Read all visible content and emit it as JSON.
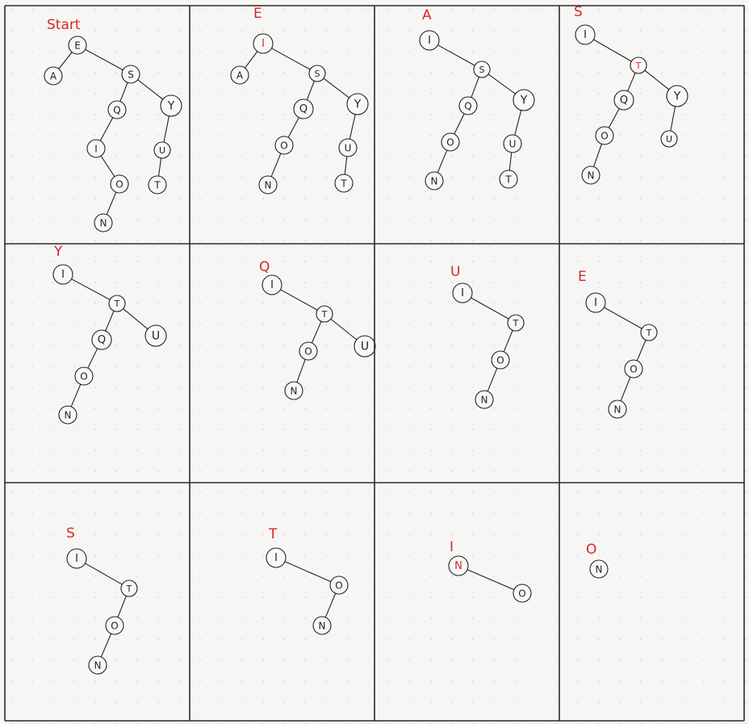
{
  "panels": [
    {
      "title": "Start",
      "nodes": [
        {
          "id": "E",
          "label": "E"
        },
        {
          "id": "A",
          "label": "A"
        },
        {
          "id": "S",
          "label": "S"
        },
        {
          "id": "Q",
          "label": "Q"
        },
        {
          "id": "Y",
          "label": "Y"
        },
        {
          "id": "I",
          "label": "I"
        },
        {
          "id": "U",
          "label": "U"
        },
        {
          "id": "O",
          "label": "O"
        },
        {
          "id": "T",
          "label": "T"
        },
        {
          "id": "N",
          "label": "N"
        }
      ],
      "edges": [
        [
          "E",
          "A"
        ],
        [
          "E",
          "S"
        ],
        [
          "S",
          "Q"
        ],
        [
          "S",
          "Y"
        ],
        [
          "Q",
          "I"
        ],
        [
          "I",
          "O"
        ],
        [
          "O",
          "N"
        ],
        [
          "Y",
          "U"
        ],
        [
          "U",
          "T"
        ]
      ]
    },
    {
      "title": "E",
      "nodes": [
        {
          "id": "I",
          "label": "I",
          "highlight": true
        },
        {
          "id": "A",
          "label": "A"
        },
        {
          "id": "S",
          "label": "S"
        },
        {
          "id": "Q",
          "label": "Q"
        },
        {
          "id": "Y",
          "label": "Y"
        },
        {
          "id": "O",
          "label": "O"
        },
        {
          "id": "U",
          "label": "U"
        },
        {
          "id": "N",
          "label": "N"
        },
        {
          "id": "T",
          "label": "T"
        }
      ],
      "edges": [
        [
          "I",
          "A"
        ],
        [
          "I",
          "S"
        ],
        [
          "S",
          "Q"
        ],
        [
          "S",
          "Y"
        ],
        [
          "Q",
          "O"
        ],
        [
          "O",
          "N"
        ],
        [
          "Y",
          "U"
        ],
        [
          "U",
          "T"
        ]
      ]
    },
    {
      "title": "A",
      "nodes": [
        {
          "id": "I",
          "label": "I"
        },
        {
          "id": "S",
          "label": "S"
        },
        {
          "id": "Q",
          "label": "Q"
        },
        {
          "id": "Y",
          "label": "Y"
        },
        {
          "id": "O",
          "label": "O"
        },
        {
          "id": "U",
          "label": "U"
        },
        {
          "id": "N",
          "label": "N"
        },
        {
          "id": "T",
          "label": "T"
        }
      ],
      "edges": [
        [
          "I",
          "S"
        ],
        [
          "S",
          "Q"
        ],
        [
          "S",
          "Y"
        ],
        [
          "Q",
          "O"
        ],
        [
          "O",
          "N"
        ],
        [
          "Y",
          "U"
        ],
        [
          "U",
          "T"
        ]
      ]
    },
    {
      "title": "S",
      "nodes": [
        {
          "id": "I",
          "label": "I"
        },
        {
          "id": "T",
          "label": "T",
          "highlight": true
        },
        {
          "id": "Q",
          "label": "Q"
        },
        {
          "id": "Y",
          "label": "Y"
        },
        {
          "id": "O",
          "label": "O"
        },
        {
          "id": "U",
          "label": "U"
        },
        {
          "id": "N",
          "label": "N"
        }
      ],
      "edges": [
        [
          "I",
          "T"
        ],
        [
          "T",
          "Q"
        ],
        [
          "T",
          "Y"
        ],
        [
          "Q",
          "O"
        ],
        [
          "O",
          "N"
        ],
        [
          "Y",
          "U"
        ]
      ]
    },
    {
      "title": "Y",
      "nodes": [
        {
          "id": "I",
          "label": "I"
        },
        {
          "id": "T",
          "label": "T"
        },
        {
          "id": "Q",
          "label": "Q"
        },
        {
          "id": "U",
          "label": "U"
        },
        {
          "id": "O",
          "label": "O"
        },
        {
          "id": "N",
          "label": "N"
        }
      ],
      "edges": [
        [
          "I",
          "T"
        ],
        [
          "T",
          "Q"
        ],
        [
          "T",
          "U"
        ],
        [
          "Q",
          "O"
        ],
        [
          "O",
          "N"
        ]
      ]
    },
    {
      "title": "Q",
      "nodes": [
        {
          "id": "I",
          "label": "I"
        },
        {
          "id": "T",
          "label": "T"
        },
        {
          "id": "O",
          "label": "O"
        },
        {
          "id": "U",
          "label": "U"
        },
        {
          "id": "N",
          "label": "N"
        }
      ],
      "edges": [
        [
          "I",
          "T"
        ],
        [
          "T",
          "O"
        ],
        [
          "T",
          "U"
        ],
        [
          "O",
          "N"
        ]
      ]
    },
    {
      "title": "U",
      "nodes": [
        {
          "id": "I",
          "label": "I"
        },
        {
          "id": "T",
          "label": "T"
        },
        {
          "id": "O",
          "label": "O"
        },
        {
          "id": "N",
          "label": "N"
        }
      ],
      "edges": [
        [
          "I",
          "T"
        ],
        [
          "T",
          "O"
        ],
        [
          "O",
          "N"
        ]
      ]
    },
    {
      "title": "E",
      "nodes": [
        {
          "id": "I",
          "label": "I"
        },
        {
          "id": "T",
          "label": "T"
        },
        {
          "id": "O",
          "label": "O"
        },
        {
          "id": "N",
          "label": "N"
        }
      ],
      "edges": [
        [
          "I",
          "T"
        ],
        [
          "T",
          "O"
        ],
        [
          "O",
          "N"
        ]
      ]
    },
    {
      "title": "S",
      "nodes": [
        {
          "id": "I",
          "label": "I"
        },
        {
          "id": "T",
          "label": "T"
        },
        {
          "id": "O",
          "label": "O"
        },
        {
          "id": "N",
          "label": "N"
        }
      ],
      "edges": [
        [
          "I",
          "T"
        ],
        [
          "T",
          "O"
        ],
        [
          "O",
          "N"
        ]
      ]
    },
    {
      "title": "T",
      "nodes": [
        {
          "id": "I",
          "label": "I"
        },
        {
          "id": "O",
          "label": "O"
        },
        {
          "id": "N",
          "label": "N"
        }
      ],
      "edges": [
        [
          "I",
          "O"
        ],
        [
          "O",
          "N"
        ]
      ]
    },
    {
      "title": "I",
      "nodes": [
        {
          "id": "N",
          "label": "N",
          "highlight": true
        },
        {
          "id": "O",
          "label": "O"
        }
      ],
      "edges": [
        [
          "N",
          "O"
        ]
      ]
    },
    {
      "title": "O",
      "nodes": [
        {
          "id": "N",
          "label": "N"
        }
      ],
      "edges": []
    }
  ],
  "colors": {
    "background": "#f6f6f4",
    "ink": "#222222",
    "highlight": "#d62828",
    "grid": "#2a2a2a"
  }
}
